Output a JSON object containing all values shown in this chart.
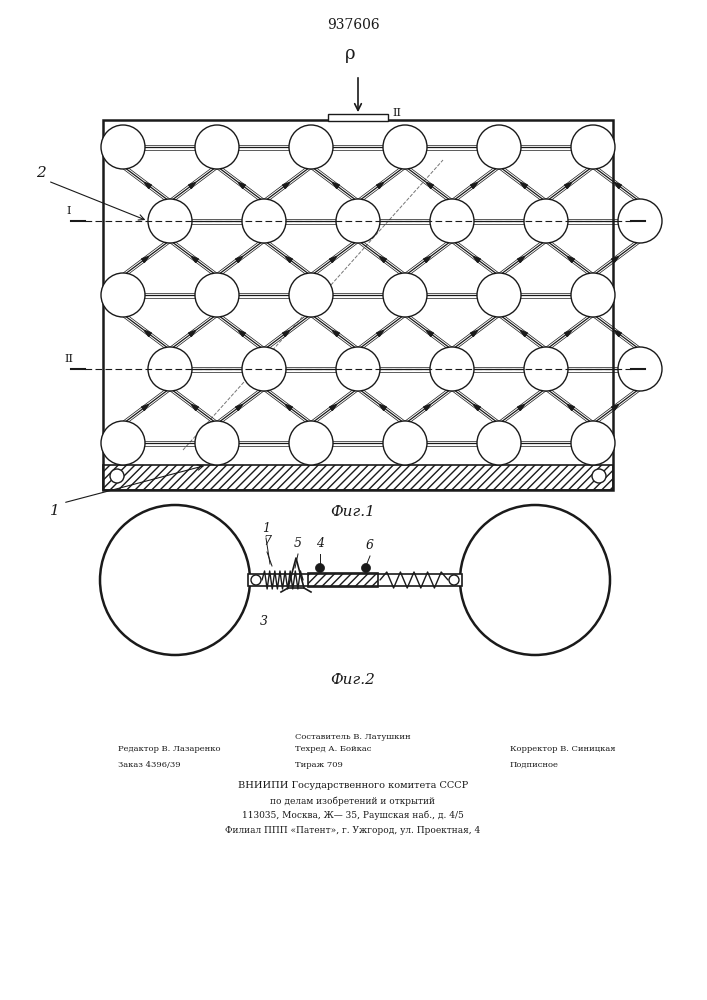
{
  "title": "937606",
  "fig1_label": "Фиг.1",
  "fig2_label": "Фиг.2",
  "bg_color": "#ffffff",
  "line_color": "#1a1a1a",
  "label1": "1",
  "label2": "2",
  "label_p": "ρ",
  "label3": "3",
  "label4": "4",
  "label5": "5",
  "label6": "6",
  "label7": "7",
  "editor_text": "Редактор В. Лазаренко",
  "order_text": "Заказ 4396/39",
  "composer_text": "Составитель В. Латушкин",
  "techred_text": "Техред А. Бойкас",
  "tirazh_text": "Тираж 709",
  "corrector_text": "Корректор В. Синицкая",
  "podpisnoe_text": "Подписное",
  "vniip1": "ВНИИПИ Государственного комитета СССР",
  "vniip2": "по делам изобретений и открытий",
  "vniip3": "113035, Москва, Ж— 35, Раушская наб., д. 4/5",
  "vniip4": "Филиал ППП «Патент», г. Ужгород, ул. Проектная, 4"
}
